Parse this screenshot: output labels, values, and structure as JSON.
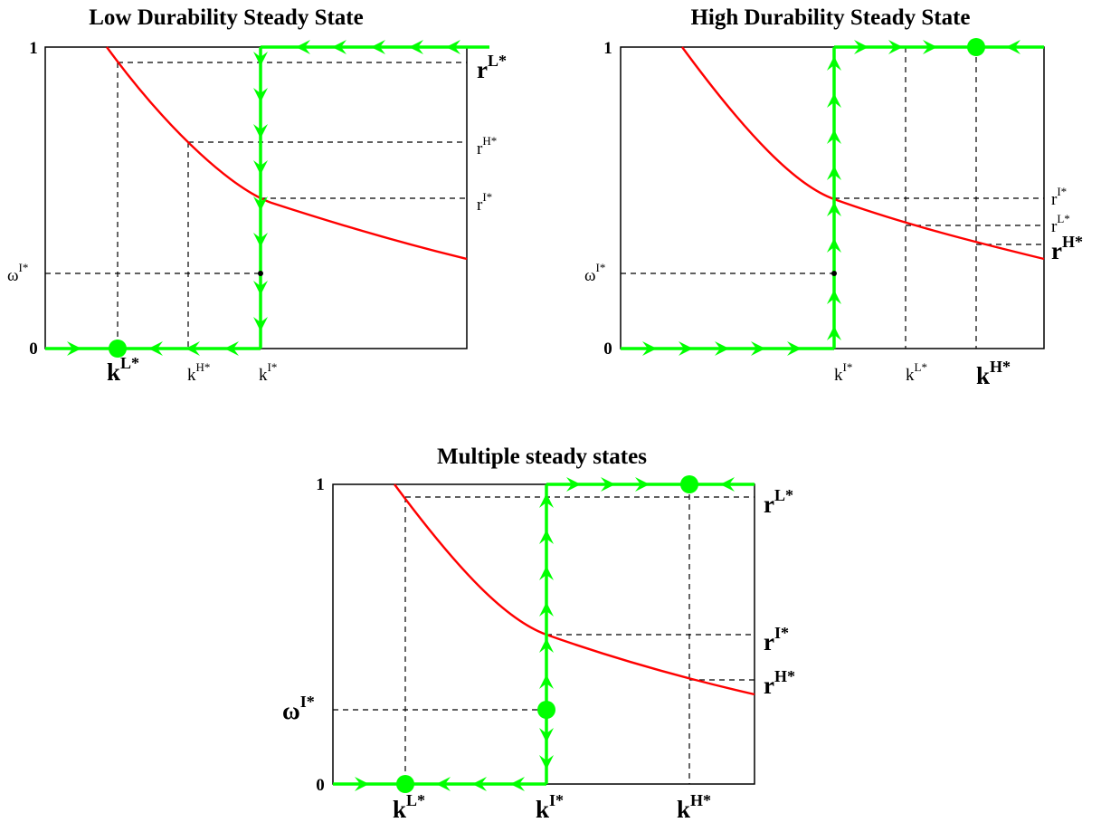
{
  "colors": {
    "flow": "#00ff00",
    "curve": "#ff0000",
    "frame": "#000000",
    "guide": "#000000"
  },
  "panels": [
    {
      "id": "low",
      "title": "Low Durability Steady State",
      "y_top_label": "1",
      "y_bottom_label": "0",
      "labels": {
        "omega": {
          "base": "ω",
          "sup": "I*",
          "style": "small"
        },
        "r_L": {
          "base": "r",
          "sup": "L*",
          "style": "big"
        },
        "r_H": {
          "base": "r",
          "sup": "H*",
          "style": "small"
        },
        "r_I": {
          "base": "r",
          "sup": "I*",
          "style": "small"
        },
        "k_L": {
          "base": "k",
          "sup": "L*",
          "style": "big"
        },
        "k_H": {
          "base": "k",
          "sup": "H*",
          "style": "small"
        },
        "k_I": {
          "base": "k",
          "sup": "I*",
          "style": "small"
        }
      }
    },
    {
      "id": "high",
      "title": "High Durability Steady State",
      "y_top_label": "1",
      "y_bottom_label": "0",
      "labels": {
        "omega": {
          "base": "ω",
          "sup": "I*",
          "style": "small"
        },
        "r_I": {
          "base": "r",
          "sup": "I*",
          "style": "small"
        },
        "r_L": {
          "base": "r",
          "sup": "L*",
          "style": "small"
        },
        "r_H": {
          "base": "r",
          "sup": "H*",
          "style": "big"
        },
        "k_I": {
          "base": "k",
          "sup": "I*",
          "style": "small"
        },
        "k_L": {
          "base": "k",
          "sup": "L*",
          "style": "small"
        },
        "k_H": {
          "base": "k",
          "sup": "H*",
          "style": "big"
        }
      }
    },
    {
      "id": "multi",
      "title": "Multiple steady states",
      "y_top_label": "1",
      "y_bottom_label": "0",
      "labels": {
        "omega": {
          "base": "ω",
          "sup": "I*",
          "style": "big"
        },
        "r_L": {
          "base": "r",
          "sup": "L*",
          "style": "big"
        },
        "r_I": {
          "base": "r",
          "sup": "I*",
          "style": "big"
        },
        "r_H": {
          "base": "r",
          "sup": "H*",
          "style": "big"
        },
        "k_L": {
          "base": "k",
          "sup": "L*",
          "style": "big"
        },
        "k_I": {
          "base": "k",
          "sup": "I*",
          "style": "big"
        },
        "k_H": {
          "base": "k",
          "sup": "H*",
          "style": "big"
        }
      }
    }
  ]
}
